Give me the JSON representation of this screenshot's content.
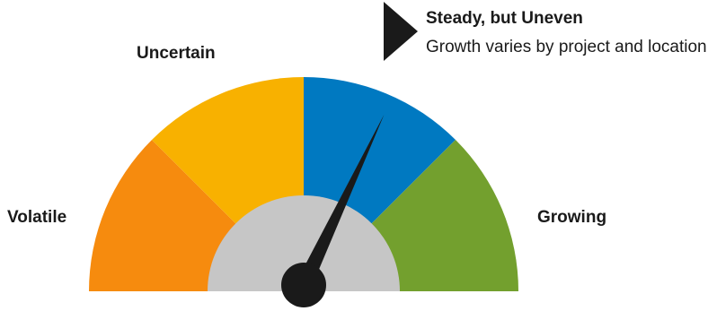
{
  "gauge": {
    "segments": [
      {
        "label": "Volatile",
        "color": "#F68B0E"
      },
      {
        "label": "Uncertain",
        "color": "#F8B100"
      },
      {
        "label": "",
        "color": "#0079C1"
      },
      {
        "label": "Growing",
        "color": "#73A02E"
      }
    ],
    "hub_color": "#C6C6C6",
    "needle_color": "#1a1a1a",
    "needle_value_percent": 64
  },
  "callout": {
    "title": "Steady, but Uneven",
    "subtitle": "Growth varies by project and location",
    "marker_icon": "triangle-pointer-icon"
  }
}
